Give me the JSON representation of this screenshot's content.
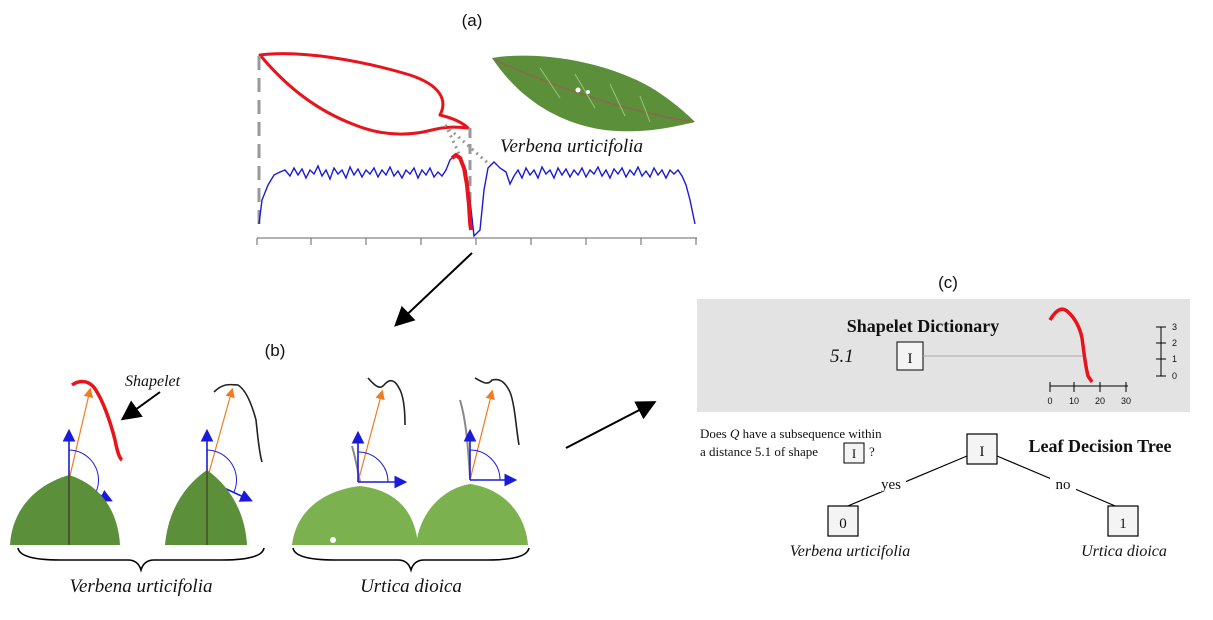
{
  "panel_a": {
    "label": "(a)",
    "species": "Verbena urticifolia"
  },
  "panel_b": {
    "label": "(b)",
    "shapelet_label": "Shapelet",
    "group_left": "Verbena urticifolia",
    "group_right": "Urtica dioica"
  },
  "panel_c": {
    "label": "(c)",
    "dictionary_title": "Shapelet Dictionary",
    "threshold": "5.1",
    "shape_symbol": "I",
    "scale_ticks_x": [
      "0",
      "10",
      "20",
      "30"
    ],
    "scale_ticks_y": [
      "3",
      "2",
      "1",
      "0"
    ],
    "question_line1_pre": "Does ",
    "question_var": "Q",
    "question_line1_post": " have a subsequence within",
    "question_line2": "a distance 5.1 of shape",
    "question_end": "?",
    "tree_title": "Leaf Decision Tree",
    "root_symbol": "I",
    "yes_label": "yes",
    "no_label": "no",
    "left_leaf": "0",
    "right_leaf": "1",
    "left_species": "Verbena urticifolia",
    "right_species": "Urtica dioica"
  },
  "colors": {
    "highlight": "#e8141b",
    "timeseries": "#1a1adb",
    "arrow_orange": "#f07c1e",
    "angle_blue": "#1a1adb",
    "dictionary_bg": "#e3e3e3"
  }
}
